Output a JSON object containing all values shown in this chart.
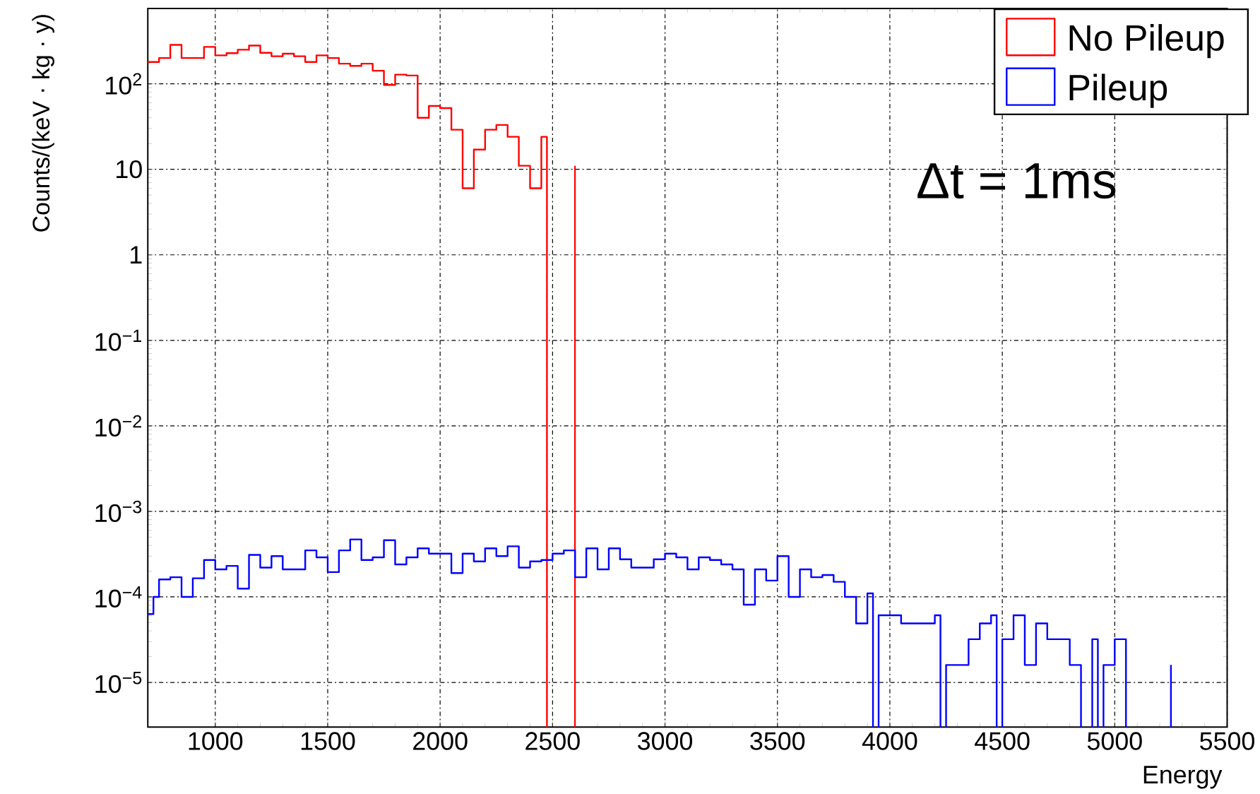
{
  "chart_data": {
    "type": "step",
    "xlabel": "Energy",
    "ylabel": "Counts/(keV · kg · y)",
    "annotations": [
      "Δt = 1ms"
    ],
    "log": "y",
    "grid": true,
    "legend": "top right",
    "xlim": [
      700,
      5500
    ],
    "xticks": [
      1000,
      1500,
      2000,
      2500,
      3000,
      3500,
      4000,
      4500,
      5000,
      5500
    ],
    "ylim": [
      3e-06,
      760
    ],
    "yticks": [
      {
        "value": 1e-05,
        "label": "10$^{−5}$"
      },
      {
        "value": 0.0001,
        "label": "10$^{−4}$"
      },
      {
        "value": 0.001,
        "label": "10$^{−3}$"
      },
      {
        "value": 0.01,
        "label": "10$^{−2}$"
      },
      {
        "value": 0.1,
        "label": "10$^{−1}$"
      },
      1,
      10,
      {
        "value": 100,
        "label": "10$^{2}$"
      }
    ],
    "series": [
      {
        "name": "No Pileup",
        "color": "#ff0000",
        "x": [
          700,
          750,
          800,
          850,
          900,
          950,
          1000,
          1050,
          1100,
          1150,
          1200,
          1250,
          1300,
          1350,
          1400,
          1450,
          1500,
          1550,
          1600,
          1650,
          1700,
          1750,
          1800,
          1850,
          1900,
          1950,
          2000,
          2050,
          2100,
          2150,
          2200,
          2250,
          2300,
          2350,
          2400,
          2450,
          2475,
          2600
        ],
        "values": [
          180,
          200,
          285,
          200,
          200,
          270,
          215,
          228,
          250,
          280,
          230,
          210,
          225,
          210,
          180,
          215,
          200,
          172,
          162,
          172,
          142,
          97,
          128,
          125,
          40,
          55,
          52,
          29,
          6,
          17,
          29,
          33,
          24,
          11,
          6,
          24,
          null,
          11
        ]
      },
      {
        "name": "Pileup",
        "color": "#0000ff",
        "x": [
          700,
          725,
          750,
          800,
          850,
          900,
          950,
          1000,
          1050,
          1100,
          1150,
          1200,
          1250,
          1300,
          1350,
          1400,
          1450,
          1500,
          1550,
          1600,
          1650,
          1700,
          1750,
          1800,
          1850,
          1900,
          1950,
          2000,
          2050,
          2100,
          2150,
          2200,
          2250,
          2300,
          2350,
          2400,
          2450,
          2500,
          2550,
          2600,
          2650,
          2700,
          2750,
          2800,
          2850,
          2900,
          2950,
          3000,
          3050,
          3100,
          3150,
          3200,
          3250,
          3300,
          3350,
          3400,
          3450,
          3500,
          3550,
          3600,
          3650,
          3700,
          3750,
          3800,
          3850,
          3900,
          3925,
          3950,
          4000,
          4050,
          4100,
          4150,
          4200,
          4225,
          4250,
          4300,
          4350,
          4400,
          4450,
          4475,
          4500,
          4550,
          4600,
          4650,
          4700,
          4750,
          4800,
          4850,
          4900,
          4925,
          4950,
          5000,
          5050,
          5250
        ],
        "values": [
          6.3e-05,
          0.0001,
          0.00016,
          0.00017,
          0.0001,
          0.000165,
          0.00027,
          0.00021,
          0.00023,
          0.000125,
          0.00031,
          0.00022,
          0.0003,
          0.00021,
          0.00021,
          0.00035,
          0.00029,
          0.000195,
          0.00035,
          0.00047,
          0.00027,
          0.00029,
          0.00046,
          0.00024,
          0.00029,
          0.00037,
          0.00032,
          0.00032,
          0.00019,
          0.00032,
          0.00026,
          0.00037,
          0.0003,
          0.00039,
          0.00022,
          0.00026,
          0.00027,
          0.00032,
          0.00035,
          0.00017,
          0.00037,
          0.00021,
          0.00037,
          0.000275,
          0.00022,
          0.00022,
          0.000275,
          0.00032,
          0.00029,
          0.00021,
          0.00029,
          0.00027,
          0.00024,
          0.00021,
          8.1e-05,
          0.00021,
          0.000155,
          0.0003,
          0.0001,
          0.00021,
          0.00017,
          0.00018,
          0.00015,
          0.0001,
          4.9e-05,
          0.00011,
          null,
          6.1e-05,
          6.1e-05,
          4.9e-05,
          4.9e-05,
          4.9e-05,
          6.1e-05,
          null,
          1.6e-05,
          1.6e-05,
          3.2e-05,
          4.9e-05,
          6.1e-05,
          null,
          3.2e-05,
          6.1e-05,
          1.6e-05,
          4.9e-05,
          3.2e-05,
          3.2e-05,
          1.6e-05,
          null,
          3.2e-05,
          null,
          1.6e-05,
          3.2e-05,
          null,
          1.6e-05
        ]
      }
    ]
  }
}
